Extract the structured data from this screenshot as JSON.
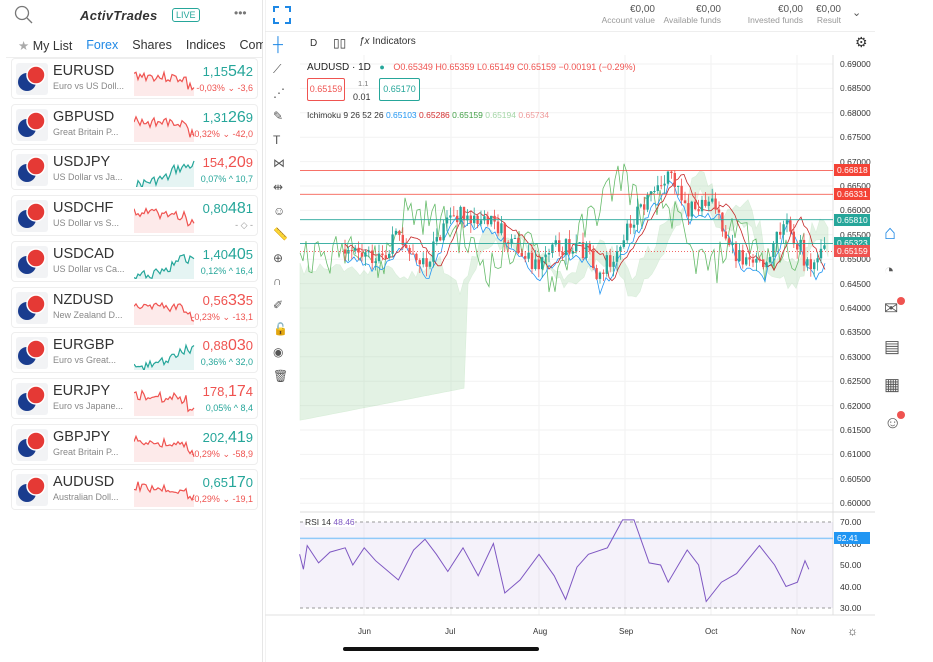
{
  "header": {
    "brand": "ActivTrades",
    "live_badge": "LIVE",
    "search_icon": "search-icon",
    "menu_icon": "more-icon"
  },
  "tabs": [
    {
      "label": "My List",
      "icon": "star-icon"
    },
    {
      "label": "Forex",
      "active": true
    },
    {
      "label": "Shares"
    },
    {
      "label": "Indices"
    },
    {
      "label": "Commo"
    }
  ],
  "instruments": [
    {
      "symbol": "EURUSD",
      "desc": "Euro vs US Doll...",
      "p1": "1,15",
      "p2": "54",
      "p3": "2",
      "price_color": "up",
      "change": "-0,03% ⌄ -3,6",
      "change_color": "dn",
      "spark": "dn"
    },
    {
      "symbol": "GBPUSD",
      "desc": "Great Britain P...",
      "p1": "1,31",
      "p2": "26",
      "p3": "9",
      "price_color": "up",
      "change": "-0,32% ⌄ -42,0",
      "change_color": "dn",
      "spark": "dn"
    },
    {
      "symbol": "USDJPY",
      "desc": "US Dollar vs Ja...",
      "p1": "154,",
      "p2": "20",
      "p3": "9",
      "price_color": "dn",
      "change": "0,07% ^ 10,7",
      "change_color": "up",
      "spark": "up"
    },
    {
      "symbol": "USDCHF",
      "desc": "US Dollar vs S...",
      "p1": "0,80",
      "p2": "48",
      "p3": "1",
      "price_color": "up",
      "change": "- ◇ -",
      "change_color": "",
      "spark": "dn"
    },
    {
      "symbol": "USDCAD",
      "desc": "US Dollar vs Ca...",
      "p1": "1,40",
      "p2": "40",
      "p3": "5",
      "price_color": "up",
      "change": "0,12% ^ 16,4",
      "change_color": "up",
      "spark": "up"
    },
    {
      "symbol": "NZDUSD",
      "desc": "New Zealand D...",
      "p1": "0,56",
      "p2": "33",
      "p3": "5",
      "price_color": "dn",
      "change": "-0,23% ⌄ -13,1",
      "change_color": "dn",
      "spark": "dn"
    },
    {
      "symbol": "EURGBP",
      "desc": "Euro vs Great...",
      "p1": "0,88",
      "p2": "03",
      "p3": "0",
      "price_color": "dn",
      "change": "0,36% ^ 32,0",
      "change_color": "up",
      "spark": "up"
    },
    {
      "symbol": "EURJPY",
      "desc": "Euro vs Japane...",
      "p1": "178,",
      "p2": "17",
      "p3": "4",
      "price_color": "dn",
      "change": "0,05% ^ 8,4",
      "change_color": "up",
      "spark": "dn"
    },
    {
      "symbol": "GBPJPY",
      "desc": "Great Britain P...",
      "p1": "202,",
      "p2": "41",
      "p3": "9",
      "price_color": "up",
      "change": "-0,29% ⌄ -58,9",
      "change_color": "dn",
      "spark": "dn"
    },
    {
      "symbol": "AUDUSD",
      "desc": "Australian Doll...",
      "p1": "0,65",
      "p2": "17",
      "p3": "0",
      "price_color": "up",
      "change": "-0,29% ⌄ -19,1",
      "change_color": "dn",
      "spark": "dn"
    }
  ],
  "account": [
    {
      "value": "€0,00",
      "label": "Account value"
    },
    {
      "value": "€0,00",
      "label": "Available funds"
    },
    {
      "value": "€0,00",
      "label": "Invested funds"
    },
    {
      "value": "€0,00",
      "label": "Result"
    }
  ],
  "toolbar": {
    "interval": "D",
    "indicators": "Indicators"
  },
  "legend": {
    "symbol": "AUDUSD · 1D",
    "ohlc": "O0.65349 H0.65359 L0.65149 C0.65159 −0.00191 (−0.29%)",
    "sell": "0.65159",
    "spread_top": "1.1",
    "spread": "0.01",
    "buy": "0.65170",
    "ichimoku_label": "Ichimoku 9 26 52 26",
    "ichimoku_values": [
      {
        "v": "0.65103",
        "c": "#2196f3"
      },
      {
        "v": "0.65286",
        "c": "#d32f2f"
      },
      {
        "v": "0.65159",
        "c": "#43a047"
      },
      {
        "v": "0.65194",
        "c": "#a5d6a7"
      },
      {
        "v": "0.65734",
        "c": "#ef9a9a"
      }
    ]
  },
  "price_axis": [
    "0.69000",
    "0.68500",
    "0.68000",
    "0.67500",
    "0.67000",
    "0.66500",
    "0.66000",
    "0.65500",
    "0.65000",
    "0.64500",
    "0.64000",
    "0.63500",
    "0.63000",
    "0.62500",
    "0.62000",
    "0.61500",
    "0.61000",
    "0.60500",
    "0.60000"
  ],
  "price_tags": [
    {
      "v": "0.66818",
      "c": "#f44336"
    },
    {
      "v": "0.66331",
      "c": "#f44336"
    },
    {
      "v": "0.65810",
      "c": "#26a69a"
    },
    {
      "v": "0.65323",
      "c": "#26a69a"
    },
    {
      "v": "0.65159",
      "c": "#ef5350"
    }
  ],
  "rsi": {
    "label": "RSI 14",
    "value": "48.46",
    "axis": [
      "70.00",
      "60.00",
      "50.00",
      "40.00",
      "30.00"
    ],
    "tag": "62.41"
  },
  "time_axis": [
    "Jun",
    "Jul",
    "Aug",
    "Sep",
    "Oct",
    "Nov"
  ],
  "right_nav": [
    {
      "icon": "home-icon",
      "active": true
    },
    {
      "icon": "pie-chart-icon"
    },
    {
      "icon": "mail-icon",
      "badge": true
    },
    {
      "icon": "news-icon"
    },
    {
      "icon": "calendar-icon"
    },
    {
      "icon": "user-icon",
      "badge": true
    }
  ],
  "colors": {
    "up": "#26a69a",
    "down": "#ef5350",
    "accent": "#1e88e5"
  }
}
